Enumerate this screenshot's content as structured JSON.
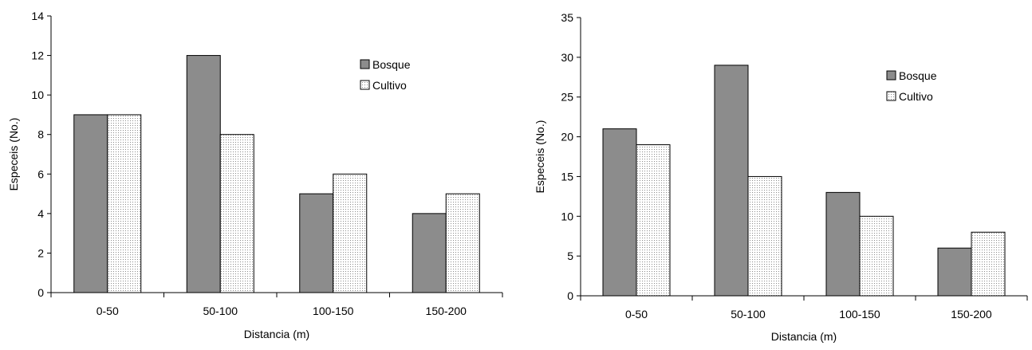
{
  "chart_data": [
    {
      "type": "bar",
      "categories": [
        "0-50",
        "50-100",
        "100-150",
        "150-200"
      ],
      "series": [
        {
          "name": "Bosque",
          "values": [
            9,
            12,
            5,
            4
          ],
          "color": "#8c8c8c",
          "pattern": "solid"
        },
        {
          "name": "Cultivo",
          "values": [
            9,
            8,
            6,
            5
          ],
          "color": "#ffffff",
          "pattern": "dotted"
        }
      ],
      "xlabel": "Distancia (m)",
      "ylabel": "Especeis (No.)",
      "ylim": [
        0,
        14
      ],
      "yticks": [
        0,
        2,
        4,
        6,
        8,
        10,
        12,
        14
      ],
      "grid": false,
      "legend": "top-right"
    },
    {
      "type": "bar",
      "categories": [
        "0-50",
        "50-100",
        "100-150",
        "150-200"
      ],
      "series": [
        {
          "name": "Bosque",
          "values": [
            21,
            29,
            13,
            6
          ],
          "color": "#8c8c8c",
          "pattern": "solid"
        },
        {
          "name": "Cultivo",
          "values": [
            19,
            15,
            10,
            8
          ],
          "color": "#ffffff",
          "pattern": "dotted"
        }
      ],
      "xlabel": "Distancia (m)",
      "ylabel": "Especeis (No.)",
      "ylim": [
        0,
        35
      ],
      "yticks": [
        0,
        5,
        10,
        15,
        20,
        25,
        30,
        35
      ],
      "grid": false,
      "legend": "top-right"
    }
  ]
}
